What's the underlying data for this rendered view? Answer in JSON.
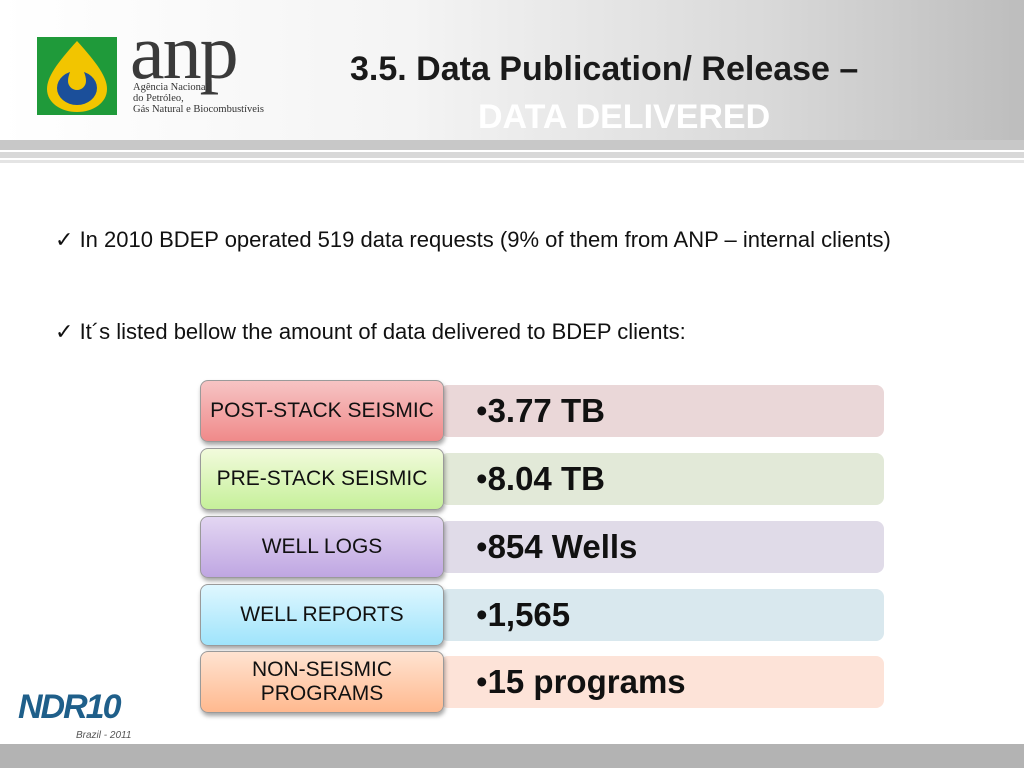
{
  "header": {
    "logo_word": "anp",
    "logo_sub_lines": [
      "Agência Nacional",
      "do Petróleo,",
      "Gás Natural e Biocombustíveis"
    ],
    "title_line1": "3.5. Data Publication/ Release –",
    "title_line2": "DATA DELIVERED"
  },
  "bullets": [
    {
      "mark": "✓",
      "text": "In 2010 BDEP operated 519 data requests (9% of them from ANP – internal clients)"
    },
    {
      "mark": "✓",
      "text": "It´s listed bellow the amount of data delivered to BDEP clients:"
    }
  ],
  "rows": [
    {
      "label": "POST-STACK SEISMIC",
      "value": "3.77 TB",
      "label_top": "#f6c4c4",
      "label_bottom": "#f08a8a",
      "value_bg": "#ead7d8"
    },
    {
      "label": "PRE-STACK SEISMIC",
      "value": "8.04 TB",
      "label_top": "#f2fbdc",
      "label_bottom": "#c6f09a",
      "value_bg": "#e2e9d8"
    },
    {
      "label": "WELL LOGS",
      "value": "854 Wells",
      "label_top": "#e3d6f2",
      "label_bottom": "#bfa6e2",
      "value_bg": "#e0dbe8"
    },
    {
      "label": "WELL REPORTS",
      "value": "1,565",
      "label_top": "#dff7ff",
      "label_bottom": "#9fe4fb",
      "value_bg": "#d9e8ee"
    },
    {
      "label": "NON-SEISMIC PROGRAMS",
      "value": "15 programs",
      "label_top": "#ffe3d1",
      "label_bottom": "#ffb98f",
      "value_bg": "#fde3d8"
    }
  ],
  "footer_logo": {
    "text": "NDR10",
    "sub": "Brazil - 2011"
  }
}
